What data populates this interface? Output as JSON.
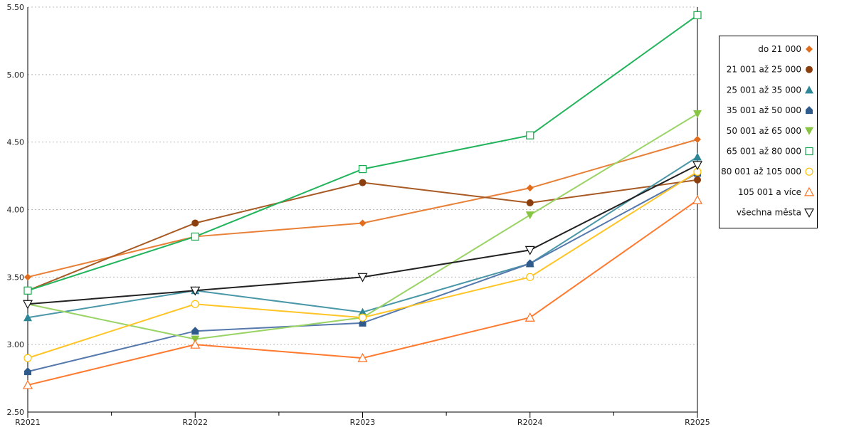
{
  "chart_data": {
    "type": "line",
    "title": "",
    "xlabel": "",
    "ylabel": "",
    "categories": [
      "R2021",
      "R2022",
      "R2023",
      "R2024",
      "R2025"
    ],
    "ylim": [
      2.5,
      5.5
    ],
    "yticks": [
      "2.50",
      "3.00",
      "3.50",
      "4.00",
      "4.50",
      "5.00",
      "5.50"
    ],
    "grid": true,
    "legend_position": "right",
    "series": [
      {
        "name": "do 21 000",
        "marker": "diamond",
        "color": "#e06c1c",
        "line": "#e88038",
        "values": [
          3.5,
          3.8,
          3.9,
          4.16,
          4.52
        ]
      },
      {
        "name": "21 001 až 25 000",
        "marker": "circle",
        "color": "#8b3f0e",
        "line": "#a85a24",
        "values": [
          3.4,
          3.9,
          4.2,
          4.05,
          4.22
        ]
      },
      {
        "name": "25 001 až 35 000",
        "marker": "triangle",
        "color": "#2e8797",
        "line": "#4a97a8",
        "values": [
          3.2,
          3.4,
          3.24,
          3.6,
          4.39
        ]
      },
      {
        "name": "35 001 až 50 000",
        "marker": "pentagon",
        "color": "#2f5a8c",
        "line": "#5578ad",
        "values": [
          2.8,
          3.1,
          3.16,
          3.6,
          4.27
        ]
      },
      {
        "name": "50 001 až 65 000",
        "marker": "triangle-down",
        "color": "#86c441",
        "line": "#9ad366",
        "values": [
          3.3,
          3.04,
          3.2,
          3.96,
          4.71
        ]
      },
      {
        "name": "65 001 až 80 000",
        "marker": "square-open",
        "color": "#17a84f",
        "line": "#22b45c",
        "values": [
          3.4,
          3.8,
          4.3,
          4.55,
          5.44
        ]
      },
      {
        "name": "80 001 až 105 000",
        "marker": "circle-open",
        "color": "#ffc000",
        "line": "#ffc426",
        "values": [
          2.9,
          3.3,
          3.2,
          3.5,
          4.28
        ]
      },
      {
        "name": "105 001 a více",
        "marker": "triangle-open",
        "color": "#ff7020",
        "line": "#ff7a2e",
        "values": [
          2.7,
          3.0,
          2.9,
          3.2,
          4.07
        ]
      },
      {
        "name": "všechna města",
        "marker": "triangle-down-open",
        "color": "#111111",
        "line": "#222222",
        "values": [
          3.3,
          3.4,
          3.5,
          3.7,
          4.33
        ]
      }
    ]
  }
}
